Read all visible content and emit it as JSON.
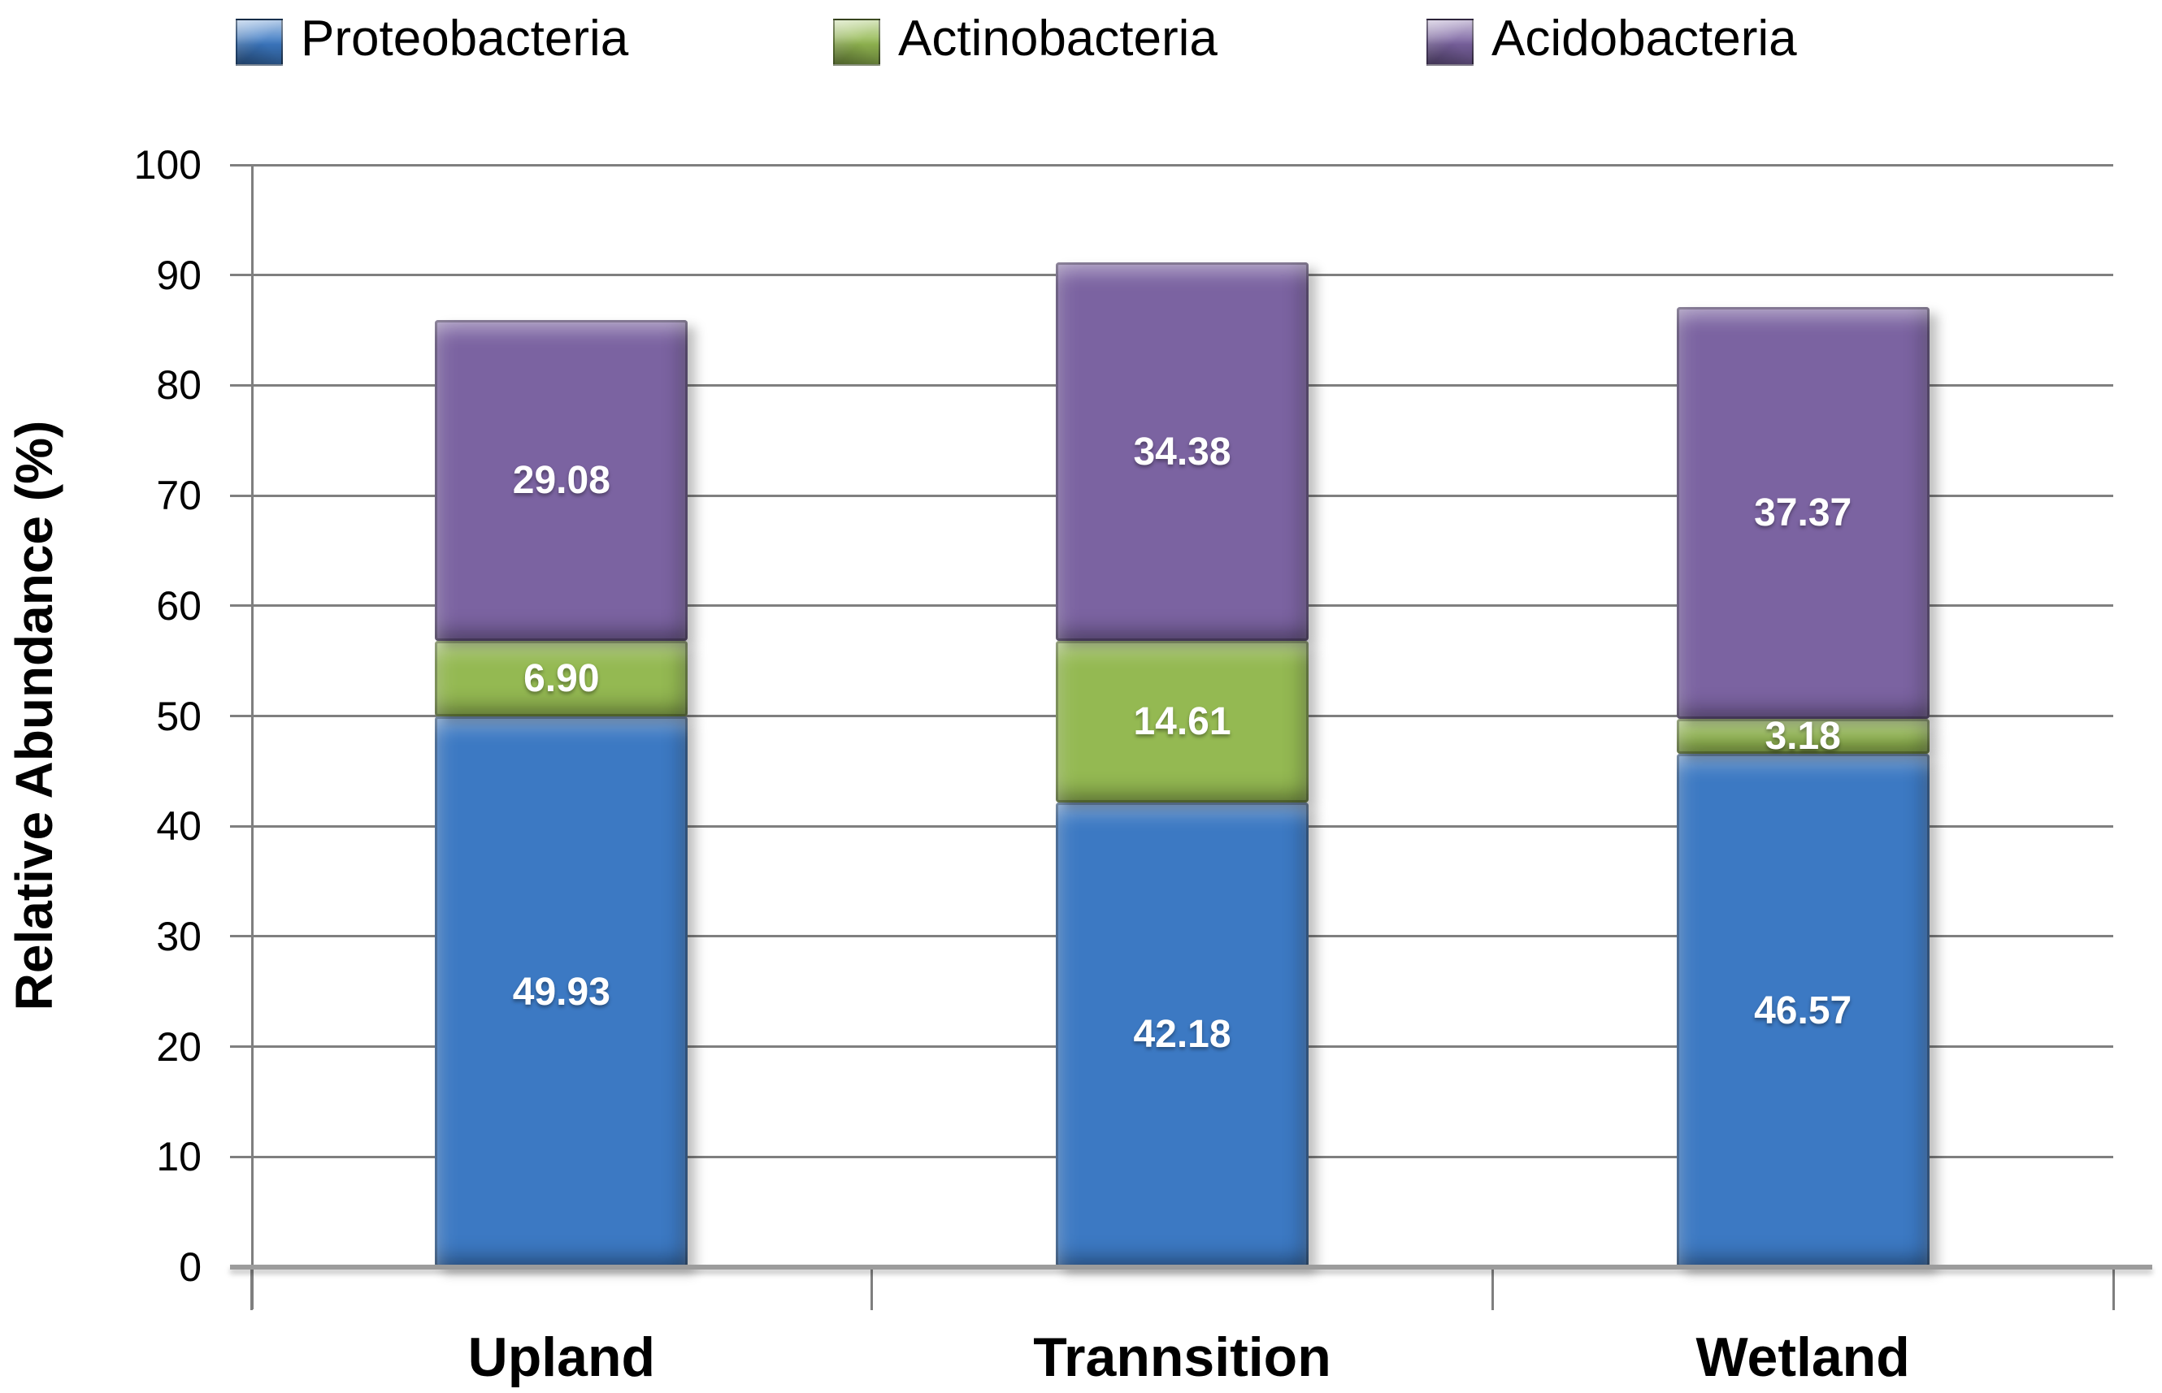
{
  "chart_data": {
    "type": "bar",
    "stacked": true,
    "categories": [
      "Upland",
      "Trannsition",
      "Wetland"
    ],
    "series": [
      {
        "name": "Proteobacteria",
        "color": "#3C79C3",
        "values": [
          49.93,
          42.18,
          46.57
        ]
      },
      {
        "name": "Actinobacteria",
        "color": "#94B952",
        "values": [
          6.9,
          14.61,
          3.18
        ]
      },
      {
        "name": "Acidobacteria",
        "color": "#7B63A1",
        "values": [
          29.08,
          34.38,
          37.37
        ]
      }
    ],
    "ylabel": "Relative Abundance (%)",
    "ylim": [
      0,
      100
    ],
    "ytick_step": 10,
    "ytick_labels": [
      "0",
      "10",
      "20",
      "30",
      "40",
      "50",
      "60",
      "70",
      "80",
      "90",
      "100"
    ],
    "grid": true,
    "legend_position": "top",
    "label_decimals": 2,
    "label_color": "#FFFFFF",
    "grid_color": "#7F7F7F",
    "axis_color": "#9C9C9C"
  }
}
